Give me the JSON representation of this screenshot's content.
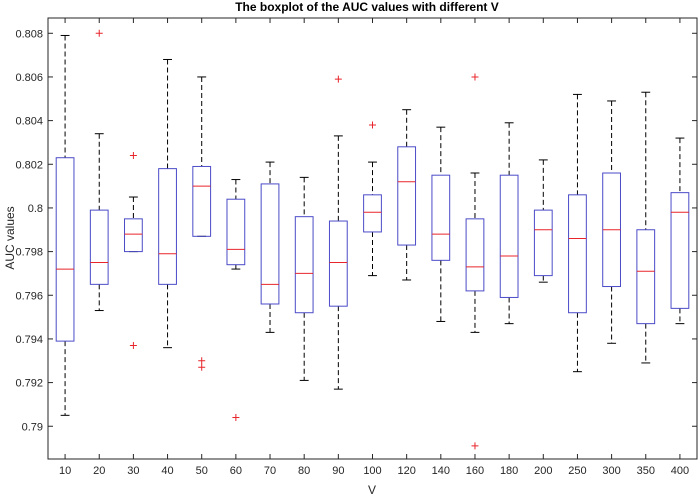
{
  "chart_data": {
    "type": "boxplot",
    "title": "The boxplot of the AUC values with different V",
    "xlabel": "V",
    "ylabel": "AUC values",
    "ylim": [
      0.7885,
      0.8087
    ],
    "yticks": [
      "0.79",
      "0.792",
      "0.794",
      "0.796",
      "0.798",
      "0.8",
      "0.802",
      "0.804",
      "0.806",
      "0.808"
    ],
    "categories": [
      "10",
      "20",
      "30",
      "40",
      "50",
      "60",
      "70",
      "80",
      "90",
      "100",
      "120",
      "140",
      "160",
      "180",
      "200",
      "250",
      "300",
      "350",
      "400"
    ],
    "boxes": [
      {
        "min": 0.7905,
        "q1": 0.7939,
        "median": 0.7972,
        "q3": 0.8023,
        "max": 0.8079,
        "outliers": []
      },
      {
        "min": 0.7953,
        "q1": 0.7965,
        "median": 0.7975,
        "q3": 0.7999,
        "max": 0.8034,
        "outliers": [
          0.808
        ]
      },
      {
        "min": 0.798,
        "q1": 0.798,
        "median": 0.7988,
        "q3": 0.7995,
        "max": 0.8005,
        "outliers": [
          0.8024,
          0.7937
        ]
      },
      {
        "min": 0.7936,
        "q1": 0.7965,
        "median": 0.7979,
        "q3": 0.8018,
        "max": 0.8068,
        "outliers": []
      },
      {
        "min": 0.7987,
        "q1": 0.7987,
        "median": 0.801,
        "q3": 0.8019,
        "max": 0.806,
        "outliers": [
          0.793,
          0.7927
        ]
      },
      {
        "min": 0.7972,
        "q1": 0.7974,
        "median": 0.7981,
        "q3": 0.8004,
        "max": 0.8013,
        "outliers": [
          0.7904
        ]
      },
      {
        "min": 0.7943,
        "q1": 0.7956,
        "median": 0.7965,
        "q3": 0.8011,
        "max": 0.8021,
        "outliers": []
      },
      {
        "min": 0.7921,
        "q1": 0.7952,
        "median": 0.797,
        "q3": 0.7996,
        "max": 0.8014,
        "outliers": []
      },
      {
        "min": 0.7917,
        "q1": 0.7955,
        "median": 0.7975,
        "q3": 0.7994,
        "max": 0.8033,
        "outliers": [
          0.8059
        ]
      },
      {
        "min": 0.7969,
        "q1": 0.7989,
        "median": 0.7998,
        "q3": 0.8006,
        "max": 0.8021,
        "outliers": [
          0.8038
        ]
      },
      {
        "min": 0.7967,
        "q1": 0.7983,
        "median": 0.8012,
        "q3": 0.8028,
        "max": 0.8045,
        "outliers": []
      },
      {
        "min": 0.7948,
        "q1": 0.7976,
        "median": 0.7988,
        "q3": 0.8015,
        "max": 0.8037,
        "outliers": []
      },
      {
        "min": 0.7943,
        "q1": 0.7962,
        "median": 0.7973,
        "q3": 0.7995,
        "max": 0.8016,
        "outliers": [
          0.806,
          0.7891
        ]
      },
      {
        "min": 0.7947,
        "q1": 0.7959,
        "median": 0.7978,
        "q3": 0.8015,
        "max": 0.8039,
        "outliers": []
      },
      {
        "min": 0.7966,
        "q1": 0.7969,
        "median": 0.799,
        "q3": 0.7999,
        "max": 0.8022,
        "outliers": []
      },
      {
        "min": 0.7925,
        "q1": 0.7952,
        "median": 0.7986,
        "q3": 0.8006,
        "max": 0.8052,
        "outliers": []
      },
      {
        "min": 0.7938,
        "q1": 0.7964,
        "median": 0.799,
        "q3": 0.8016,
        "max": 0.8049,
        "outliers": []
      },
      {
        "min": 0.7929,
        "q1": 0.7947,
        "median": 0.7971,
        "q3": 0.799,
        "max": 0.8053,
        "outliers": []
      },
      {
        "min": 0.7947,
        "q1": 0.7954,
        "median": 0.7998,
        "q3": 0.8007,
        "max": 0.8032,
        "outliers": []
      }
    ],
    "grid": false,
    "colors": {
      "box": "#4b4bc8",
      "median": "#e8252b",
      "whisker": "#000000",
      "outlier": "#e8252b",
      "axis": "#262626"
    }
  }
}
